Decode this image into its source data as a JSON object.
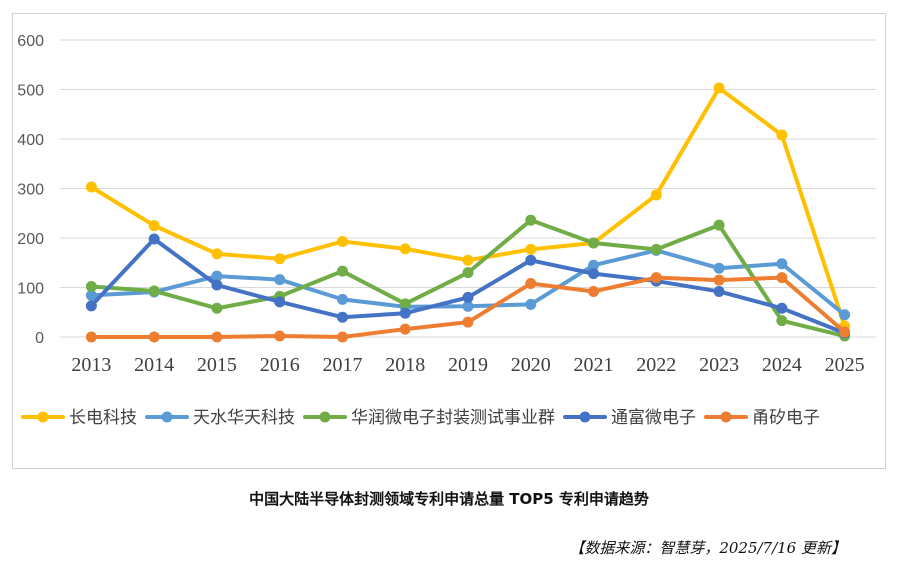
{
  "caption": "中国大陆半导体封测领域专利申请总量 TOP5 专利申请趋势",
  "source": "【数据来源：智慧芽，2025/7/16 更新】",
  "chart_data": {
    "type": "line",
    "title": "",
    "xlabel": "",
    "ylabel": "",
    "ylim": [
      0,
      600
    ],
    "yticks": [
      0,
      100,
      200,
      300,
      400,
      500,
      600
    ],
    "grid": true,
    "legend_position": "bottom",
    "categories": [
      "2013",
      "2014",
      "2015",
      "2016",
      "2017",
      "2018",
      "2019",
      "2020",
      "2021",
      "2022",
      "2023",
      "2024",
      "2025"
    ],
    "series": [
      {
        "name": "长电科技",
        "color": "#FFC000",
        "values": [
          303,
          225,
          168,
          158,
          193,
          178,
          155,
          177,
          190,
          287,
          503,
          408,
          22
        ]
      },
      {
        "name": "天水华天科技",
        "color": "#5B9BD5",
        "values": [
          84,
          91,
          123,
          116,
          76,
          61,
          62,
          66,
          145,
          175,
          139,
          148,
          45
        ]
      },
      {
        "name": "华润微电子封装测试事业群",
        "color": "#70AD47",
        "values": [
          102,
          93,
          58,
          82,
          133,
          67,
          130,
          236,
          190,
          177,
          226,
          33,
          2
        ]
      },
      {
        "name": "通富微电子",
        "color": "#4472C4",
        "values": [
          63,
          198,
          105,
          71,
          40,
          48,
          80,
          155,
          128,
          113,
          92,
          58,
          8
        ]
      },
      {
        "name": "甬矽电子",
        "color": "#ED7D31",
        "values": [
          0,
          0,
          0,
          2,
          0,
          16,
          30,
          108,
          92,
          120,
          115,
          120,
          10
        ]
      }
    ]
  }
}
